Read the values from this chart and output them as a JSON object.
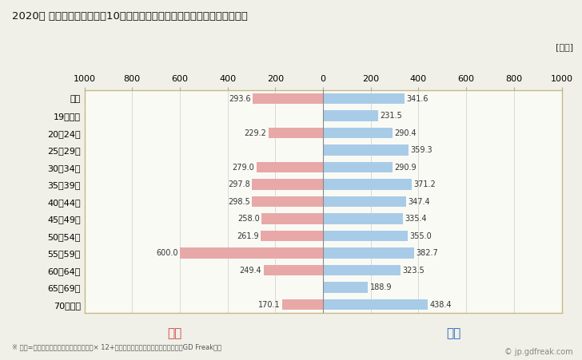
{
  "title": "2020年 民間企業（従業者数10人以上）フルタイム労働者の男女別平均年収",
  "unit_label": "[万円]",
  "categories": [
    "全体",
    "19歳以下",
    "20〜24歳",
    "25〜29歳",
    "30〜34歳",
    "35〜39歳",
    "40〜44歳",
    "45〜49歳",
    "50〜54歳",
    "55〜59歳",
    "60〜64歳",
    "65〜69歳",
    "70歳以上"
  ],
  "female_values": [
    293.6,
    0.0,
    229.2,
    0.0,
    279.0,
    297.8,
    298.5,
    258.0,
    261.9,
    600.0,
    249.4,
    0.0,
    170.1
  ],
  "male_values": [
    341.6,
    231.5,
    290.4,
    359.3,
    290.9,
    371.2,
    347.4,
    335.4,
    355.0,
    382.7,
    323.5,
    188.9,
    438.4
  ],
  "female_color": "#e8a8a8",
  "male_color": "#a8cce8",
  "female_label": "女性",
  "male_label": "男性",
  "female_label_color": "#d04040",
  "male_label_color": "#2060c0",
  "xlim": [
    -1000,
    1000
  ],
  "xticks": [
    -1000,
    -800,
    -600,
    -400,
    -200,
    0,
    200,
    400,
    600,
    800,
    1000
  ],
  "xticklabels": [
    "1000",
    "800",
    "600",
    "400",
    "200",
    "0",
    "200",
    "400",
    "600",
    "800",
    "1000"
  ],
  "footnote": "※ 年収=「きまって支給する現金給与額」× 12+「年間賞与その他特別給与額」としてGD Freak推計",
  "watermark": "© jp.gdfreak.com",
  "bg_color": "#f0f0e8",
  "plot_bg_color": "#fafaf5",
  "border_color": "#c8b888",
  "center_line_color": "#888888",
  "tick_line_color": "#aaaaaa",
  "value_text_color": "#333333"
}
